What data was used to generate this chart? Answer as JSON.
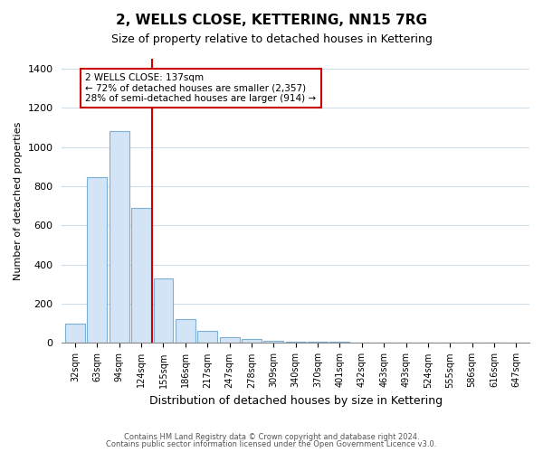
{
  "title": "2, WELLS CLOSE, KETTERING, NN15 7RG",
  "subtitle": "Size of property relative to detached houses in Kettering",
  "xlabel": "Distribution of detached houses by size in Kettering",
  "ylabel": "Number of detached properties",
  "annotation_line1": "2 WELLS CLOSE: 137sqm",
  "annotation_line2": "← 72% of detached houses are smaller (2,357)",
  "annotation_line3": "28% of semi-detached houses are larger (914) →",
  "footer1": "Contains HM Land Registry data © Crown copyright and database right 2024.",
  "footer2": "Contains public sector information licensed under the Open Government Licence v3.0.",
  "bins": [
    32,
    63,
    94,
    124,
    155,
    186,
    217,
    247,
    278,
    309,
    340,
    370,
    401,
    432,
    463,
    493,
    524,
    555,
    586,
    616,
    647
  ],
  "counts": [
    100,
    845,
    1080,
    690,
    330,
    120,
    60,
    30,
    20,
    10,
    5,
    5,
    5,
    0,
    0,
    0,
    0,
    0,
    0,
    0
  ],
  "bar_color": "#d4e4f7",
  "bar_edge_color": "#7bafd4",
  "vline_color": "#cc0000",
  "vline_x": 137,
  "annotation_box_facecolor": "#ffffff",
  "annotation_box_edgecolor": "#cc0000",
  "ylim": [
    0,
    1450
  ],
  "yticks": [
    0,
    200,
    400,
    600,
    800,
    1000,
    1200,
    1400
  ],
  "background_color": "#ffffff",
  "axes_background": "#ffffff",
  "grid_color": "#d0dce8"
}
